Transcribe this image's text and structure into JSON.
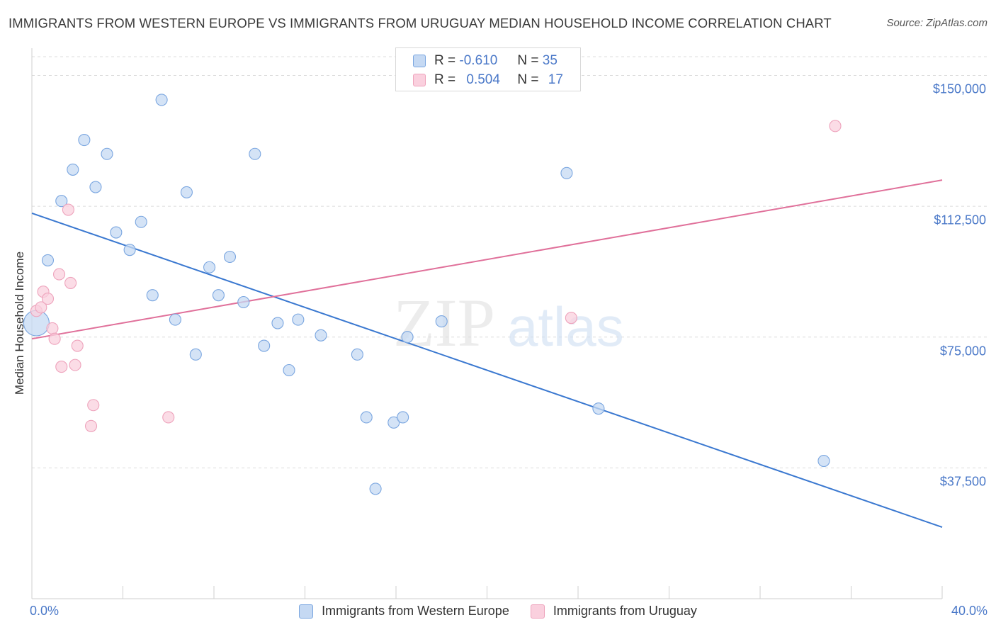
{
  "title": "IMMIGRANTS FROM WESTERN EUROPE VS IMMIGRANTS FROM URUGUAY MEDIAN HOUSEHOLD INCOME CORRELATION CHART",
  "source": "Source: ZipAtlas.com",
  "watermark": {
    "zip": "ZIP",
    "atlas": "atlas"
  },
  "legend": {
    "r_label": "R =",
    "n_label": "N =",
    "series": [
      {
        "r": "-0.610",
        "n": "35"
      },
      {
        "r": "0.504",
        "n": "17"
      }
    ]
  },
  "chart_data": {
    "type": "scatter",
    "title": "",
    "xlabel": "",
    "ylabel": "Median Household Income",
    "xlim": [
      0,
      40
    ],
    "ylim": [
      0,
      157000
    ],
    "x_tick_labels": [
      "0.0%",
      "40.0%"
    ],
    "y_ticks": [
      37500,
      75000,
      112500,
      150000
    ],
    "y_tick_labels": [
      "$37,500",
      "$75,000",
      "$112,500",
      "$150,000"
    ],
    "grid": true,
    "legend_position": "top-center",
    "series": [
      {
        "name": "Immigrants from Western Europe",
        "color": "#7aa6e0",
        "fill": "#c5d9f3",
        "line_color": "#3a78d0",
        "trend": {
          "x": [
            0,
            40
          ],
          "y": [
            110500,
            20500
          ]
        },
        "points": [
          {
            "x": 0.2,
            "y": 79000,
            "big": true
          },
          {
            "x": 0.7,
            "y": 97000
          },
          {
            "x": 1.3,
            "y": 114000
          },
          {
            "x": 1.8,
            "y": 123000
          },
          {
            "x": 2.3,
            "y": 131500
          },
          {
            "x": 2.8,
            "y": 118000
          },
          {
            "x": 3.3,
            "y": 127500
          },
          {
            "x": 3.7,
            "y": 105000
          },
          {
            "x": 4.3,
            "y": 100000
          },
          {
            "x": 4.8,
            "y": 108000
          },
          {
            "x": 5.3,
            "y": 87000
          },
          {
            "x": 5.7,
            "y": 143000
          },
          {
            "x": 6.3,
            "y": 80000
          },
          {
            "x": 6.8,
            "y": 116500
          },
          {
            "x": 7.2,
            "y": 70000
          },
          {
            "x": 7.8,
            "y": 95000
          },
          {
            "x": 8.2,
            "y": 87000
          },
          {
            "x": 8.7,
            "y": 98000
          },
          {
            "x": 9.3,
            "y": 85000
          },
          {
            "x": 9.8,
            "y": 127500
          },
          {
            "x": 10.2,
            "y": 72500
          },
          {
            "x": 10.8,
            "y": 79000
          },
          {
            "x": 11.3,
            "y": 65500
          },
          {
            "x": 11.7,
            "y": 80000
          },
          {
            "x": 12.7,
            "y": 75500
          },
          {
            "x": 14.3,
            "y": 70000
          },
          {
            "x": 14.7,
            "y": 52000
          },
          {
            "x": 15.1,
            "y": 31500
          },
          {
            "x": 15.9,
            "y": 50500
          },
          {
            "x": 16.3,
            "y": 52000
          },
          {
            "x": 16.5,
            "y": 75000
          },
          {
            "x": 18.0,
            "y": 79500
          },
          {
            "x": 23.5,
            "y": 122000
          },
          {
            "x": 24.9,
            "y": 54500
          },
          {
            "x": 34.8,
            "y": 39500
          }
        ]
      },
      {
        "name": "Immigrants from Uruguay",
        "color": "#eea3bc",
        "fill": "#fad0de",
        "line_color": "#e0709a",
        "trend": {
          "x": [
            0,
            40
          ],
          "y": [
            74500,
            120000
          ]
        },
        "points": [
          {
            "x": 0.2,
            "y": 82500
          },
          {
            "x": 0.4,
            "y": 83500
          },
          {
            "x": 0.5,
            "y": 88000
          },
          {
            "x": 0.7,
            "y": 86000
          },
          {
            "x": 0.9,
            "y": 77500
          },
          {
            "x": 1.0,
            "y": 74500
          },
          {
            "x": 1.2,
            "y": 93000
          },
          {
            "x": 1.3,
            "y": 66500
          },
          {
            "x": 1.6,
            "y": 111500
          },
          {
            "x": 1.7,
            "y": 90500
          },
          {
            "x": 1.9,
            "y": 67000
          },
          {
            "x": 2.0,
            "y": 72500
          },
          {
            "x": 2.6,
            "y": 49500
          },
          {
            "x": 2.7,
            "y": 55500
          },
          {
            "x": 6.0,
            "y": 52000
          },
          {
            "x": 23.7,
            "y": 80500
          },
          {
            "x": 35.3,
            "y": 135500
          }
        ]
      }
    ]
  },
  "bottom_legend": [
    "Immigrants from Western Europe",
    "Immigrants from Uruguay"
  ]
}
